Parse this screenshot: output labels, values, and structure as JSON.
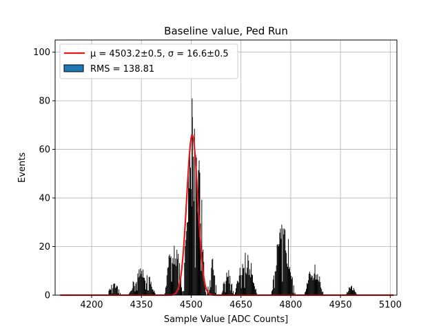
{
  "chart_data": {
    "type": "bar",
    "title": "Baseline value, Ped Run",
    "xlabel": "Sample Value [ADC Counts]",
    "ylabel": "Events",
    "xlim": [
      4090,
      5120
    ],
    "ylim": [
      0,
      105
    ],
    "xticks": [
      4200,
      4350,
      4500,
      4650,
      4800,
      4950,
      5100
    ],
    "yticks": [
      0,
      20,
      40,
      60,
      80,
      100
    ],
    "grid": true,
    "legend_position": "top-left",
    "legend": [
      {
        "label": "μ = 4503.2±0.5, σ = 16.6±0.5",
        "kind": "line",
        "color": "#e41a1c"
      },
      {
        "label": "RMS = 138.81",
        "kind": "patch",
        "color": "#1f77b4"
      }
    ],
    "series": [
      {
        "kind": "histogram",
        "color": "#000000",
        "clusters": [
          {
            "start": 4245,
            "end": 4290,
            "peak": 5
          },
          {
            "start": 4310,
            "end": 4395,
            "peak": 12
          },
          {
            "start": 4420,
            "end": 4475,
            "peak": 26
          },
          {
            "start": 4475,
            "end": 4545,
            "peak": 81
          },
          {
            "start": 4548,
            "end": 4578,
            "peak": 17
          },
          {
            "start": 4590,
            "end": 4630,
            "peak": 11
          },
          {
            "start": 4630,
            "end": 4700,
            "peak": 18
          },
          {
            "start": 4740,
            "end": 4815,
            "peak": 30
          },
          {
            "start": 4840,
            "end": 4900,
            "peak": 13
          },
          {
            "start": 4965,
            "end": 5000,
            "peak": 4
          }
        ]
      },
      {
        "kind": "gaussian-fit",
        "color": "#e41a1c",
        "mu": 4503.2,
        "sigma": 16.6,
        "amplitude": 66,
        "x_range": [
          4105,
          5110
        ]
      }
    ]
  }
}
